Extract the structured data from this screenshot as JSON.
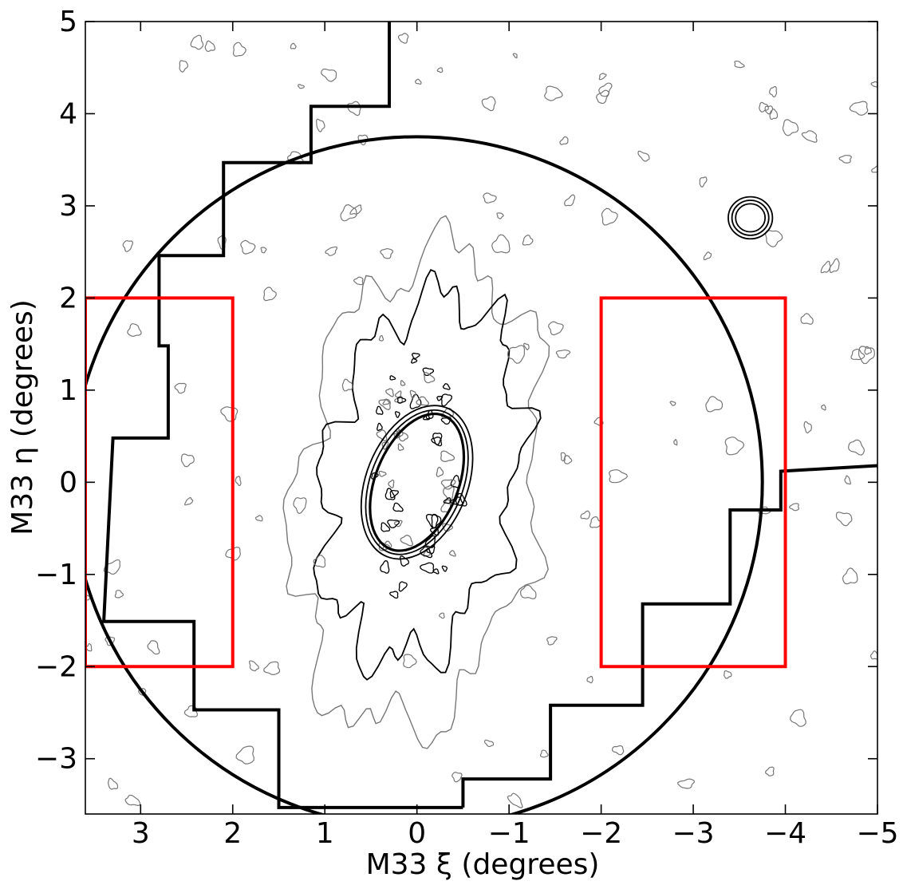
{
  "chart_data": {
    "type": "scatter",
    "title": "",
    "xlabel": "M33 ξ (degrees)",
    "ylabel": "M33 η (degrees)",
    "xlim": [
      3.6,
      -5
    ],
    "ylim": [
      -3.6,
      5
    ],
    "x_inverted": true,
    "grid": false,
    "xticks": [
      3,
      2,
      1,
      0,
      -1,
      -2,
      -3,
      -4,
      -5
    ],
    "yticks": [
      -3,
      -2,
      -1,
      0,
      1,
      2,
      3,
      4,
      5
    ],
    "xtick_labels": [
      "3",
      "2",
      "1",
      "0",
      "−1",
      "−2",
      "−3",
      "−4",
      "−5"
    ],
    "ytick_labels": [
      "−3",
      "−2",
      "−1",
      "0",
      "1",
      "2",
      "3",
      "4",
      "5"
    ],
    "colors": {
      "boxes": "#ff0000",
      "outline": "#000000",
      "contour_outer": "#777777",
      "contour_inner": "#000000"
    },
    "search_circle": {
      "center": [
        0,
        0
      ],
      "radius_deg": 3.75
    },
    "survey_footprint_left": [
      [
        0.3,
        5.1
      ],
      [
        0.3,
        4.08
      ],
      [
        1.15,
        4.08
      ],
      [
        1.15,
        3.47
      ],
      [
        2.1,
        3.47
      ],
      [
        2.1,
        2.46
      ],
      [
        2.8,
        2.46
      ],
      [
        2.8,
        1.48
      ],
      [
        2.7,
        1.48
      ],
      [
        2.7,
        0.48
      ],
      [
        3.3,
        0.48
      ],
      [
        3.4,
        -1.51
      ],
      [
        2.42,
        -1.51
      ],
      [
        2.42,
        -2.47
      ],
      [
        1.5,
        -2.47
      ],
      [
        1.5,
        -3.53
      ],
      [
        -0.5,
        -3.53
      ]
    ],
    "survey_footprint_right": [
      [
        -0.5,
        -3.53
      ],
      [
        -0.5,
        -3.22
      ],
      [
        -1.45,
        -3.22
      ],
      [
        -1.45,
        -2.42
      ],
      [
        -2.45,
        -2.42
      ],
      [
        -2.45,
        -1.32
      ],
      [
        -3.4,
        -1.32
      ],
      [
        -3.4,
        -0.3
      ],
      [
        -3.95,
        -0.3
      ],
      [
        -3.95,
        0.12
      ],
      [
        -5,
        0.18
      ]
    ],
    "red_boxes": [
      {
        "x": [
          2,
          3.6
        ],
        "y": [
          -2,
          2
        ]
      },
      {
        "x": [
          -2,
          -4
        ],
        "y": [
          -2,
          2
        ]
      }
    ],
    "disk_ellipses": [
      {
        "center": [
          0,
          0
        ],
        "a": 0.78,
        "b": 0.45,
        "pa_deg": 22,
        "contour": "inner"
      },
      {
        "center": [
          0,
          0
        ],
        "a": 0.82,
        "b": 0.5,
        "pa_deg": 22,
        "contour": "inner"
      },
      {
        "center": [
          0,
          0
        ],
        "a": 0.87,
        "b": 0.55,
        "pa_deg": 22,
        "contour": "inner"
      }
    ],
    "companion_contour": {
      "center": [
        -3.62,
        2.87
      ],
      "radii": [
        0.16,
        0.2,
        0.24
      ]
    },
    "inner_contour_radius": 1.2,
    "outer_contour_radius": 1.7
  }
}
